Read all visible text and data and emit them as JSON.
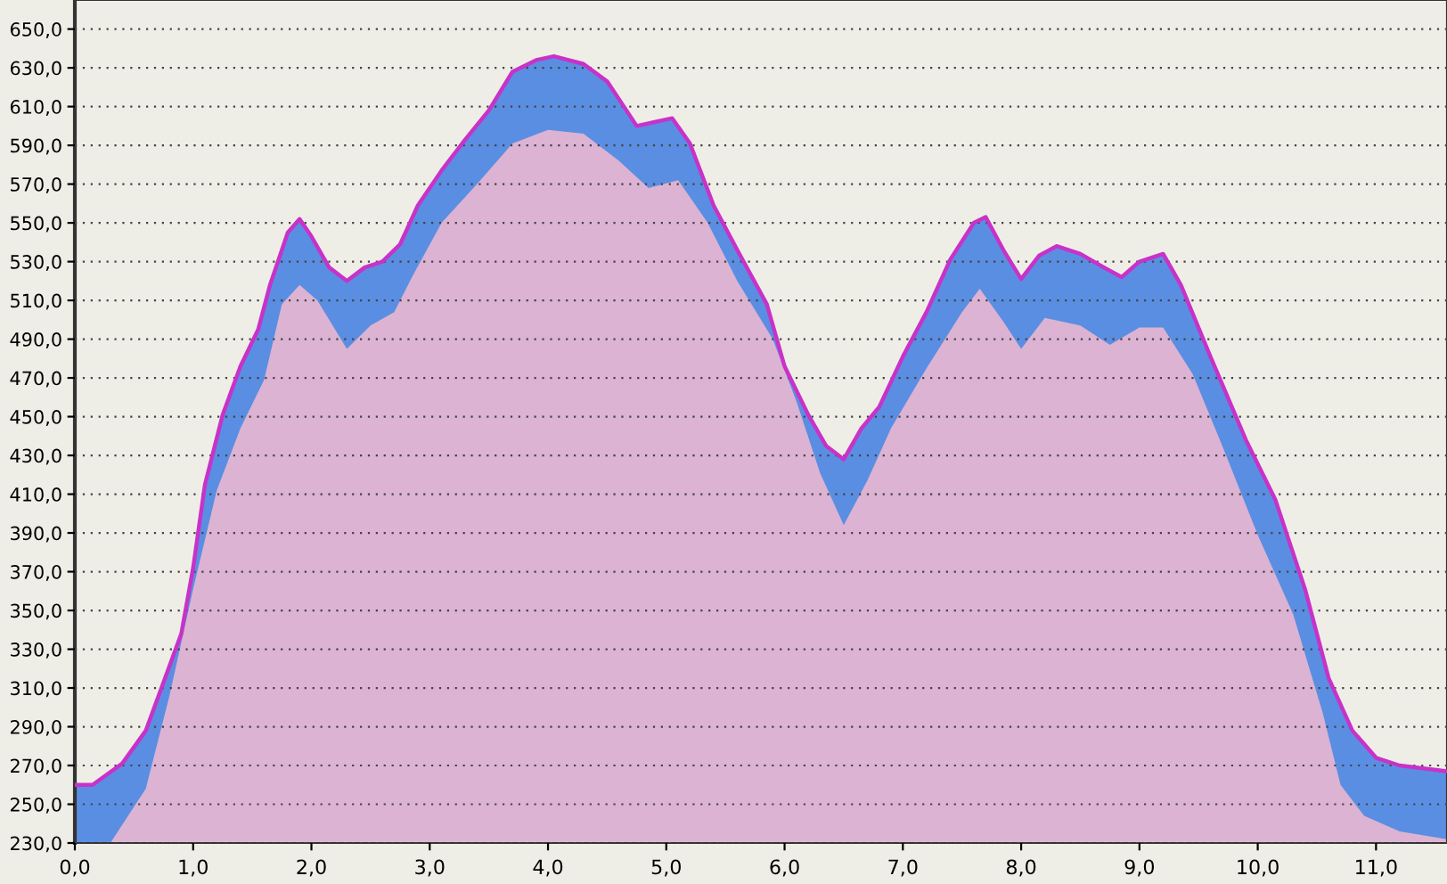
{
  "chart_data": {
    "type": "area",
    "xlim": [
      0,
      11.6
    ],
    "ylim": [
      230,
      665
    ],
    "xticks": [
      {
        "value": 0,
        "label": "0,0"
      },
      {
        "value": 1,
        "label": "1,0"
      },
      {
        "value": 2,
        "label": "2,0"
      },
      {
        "value": 3,
        "label": "3,0"
      },
      {
        "value": 4,
        "label": "4,0"
      },
      {
        "value": 5,
        "label": "5,0"
      },
      {
        "value": 6,
        "label": "6,0"
      },
      {
        "value": 7,
        "label": "7,0"
      },
      {
        "value": 8,
        "label": "8,0"
      },
      {
        "value": 9,
        "label": "9,0"
      },
      {
        "value": 10,
        "label": "10,0"
      },
      {
        "value": 11,
        "label": "11,0"
      }
    ],
    "yticks": [
      {
        "value": 230,
        "label": "230,0"
      },
      {
        "value": 250,
        "label": "250,0"
      },
      {
        "value": 270,
        "label": "270,0"
      },
      {
        "value": 290,
        "label": "290,0"
      },
      {
        "value": 310,
        "label": "310,0"
      },
      {
        "value": 330,
        "label": "330,0"
      },
      {
        "value": 350,
        "label": "350,0"
      },
      {
        "value": 370,
        "label": "370,0"
      },
      {
        "value": 390,
        "label": "390,0"
      },
      {
        "value": 410,
        "label": "410,0"
      },
      {
        "value": 430,
        "label": "430,0"
      },
      {
        "value": 450,
        "label": "450,0"
      },
      {
        "value": 470,
        "label": "470,0"
      },
      {
        "value": 490,
        "label": "490,0"
      },
      {
        "value": 510,
        "label": "510,0"
      },
      {
        "value": 530,
        "label": "530,0"
      },
      {
        "value": 550,
        "label": "550,0"
      },
      {
        "value": 570,
        "label": "570,0"
      },
      {
        "value": 590,
        "label": "590,0"
      },
      {
        "value": 610,
        "label": "610,0"
      },
      {
        "value": 630,
        "label": "630,0"
      },
      {
        "value": 650,
        "label": "650,0"
      }
    ],
    "grid": "y",
    "legend": false,
    "series": [
      {
        "color": "#5a8ee2",
        "x": [
          0,
          0.15,
          0.4,
          0.6,
          0.75,
          0.9,
          1.0,
          1.1,
          1.25,
          1.4,
          1.55,
          1.65,
          1.8,
          1.9,
          2.0,
          2.15,
          2.3,
          2.45,
          2.6,
          2.75,
          2.9,
          3.1,
          3.3,
          3.5,
          3.7,
          3.9,
          4.05,
          4.3,
          4.5,
          4.75,
          4.9,
          5.05,
          5.2,
          5.4,
          5.6,
          5.85,
          6.0,
          6.2,
          6.35,
          6.5,
          6.65,
          6.8,
          7.0,
          7.2,
          7.4,
          7.6,
          7.7,
          7.85,
          8.0,
          8.15,
          8.3,
          8.5,
          8.7,
          8.85,
          9.0,
          9.2,
          9.35,
          9.6,
          9.9,
          10.15,
          10.4,
          10.6,
          10.8,
          11.0,
          11.2,
          11.6
        ],
        "values": [
          260,
          260,
          271,
          288,
          313,
          338,
          372,
          415,
          451,
          476,
          495,
          518,
          545,
          552,
          543,
          527,
          520,
          527,
          530,
          539,
          559,
          577,
          593,
          608,
          628,
          634,
          636,
          632,
          623,
          600,
          602,
          604,
          591,
          559,
          536,
          508,
          476,
          451,
          435,
          428,
          444,
          455,
          481,
          504,
          531,
          550,
          553,
          536,
          521,
          533,
          538,
          534,
          527,
          522,
          530,
          534,
          518,
          481,
          438,
          407,
          361,
          315,
          288,
          274,
          270,
          267
        ]
      },
      {
        "color": "#dcb3d2",
        "x": [
          0,
          0.3,
          0.6,
          0.8,
          1.0,
          1.2,
          1.4,
          1.6,
          1.75,
          1.9,
          2.05,
          2.3,
          2.5,
          2.7,
          2.85,
          3.1,
          3.4,
          3.7,
          4.0,
          4.3,
          4.6,
          4.85,
          5.1,
          5.35,
          5.6,
          5.9,
          6.1,
          6.3,
          6.5,
          6.7,
          6.9,
          7.2,
          7.5,
          7.65,
          7.85,
          8.0,
          8.2,
          8.5,
          8.75,
          9.0,
          9.2,
          9.45,
          9.7,
          10.0,
          10.3,
          10.55,
          10.7,
          10.9,
          11.2,
          11.6
        ],
        "values": [
          230,
          230,
          258,
          306,
          361,
          412,
          444,
          469,
          508,
          518,
          510,
          485,
          497,
          504,
          522,
          550,
          570,
          591,
          598,
          596,
          582,
          568,
          572,
          550,
          520,
          490,
          458,
          421,
          394,
          417,
          444,
          475,
          504,
          516,
          499,
          485,
          501,
          497,
          487,
          496,
          496,
          472,
          435,
          389,
          348,
          297,
          260,
          244,
          236,
          232
        ]
      },
      {
        "type": "line",
        "color": "#c832c8",
        "x": [
          0,
          0.15,
          0.4,
          0.6,
          0.75,
          0.9,
          1.0,
          1.1,
          1.25,
          1.4,
          1.55,
          1.65,
          1.8,
          1.9,
          2.0,
          2.15,
          2.3,
          2.45,
          2.6,
          2.75,
          2.9,
          3.1,
          3.3,
          3.5,
          3.7,
          3.9,
          4.05,
          4.3,
          4.5,
          4.75,
          4.9,
          5.05,
          5.2,
          5.4,
          5.6,
          5.85,
          6.0,
          6.2,
          6.35,
          6.5,
          6.65,
          6.8,
          7.0,
          7.2,
          7.4,
          7.6,
          7.7,
          7.85,
          8.0,
          8.15,
          8.3,
          8.5,
          8.7,
          8.85,
          9.0,
          9.2,
          9.35,
          9.6,
          9.9,
          10.15,
          10.4,
          10.6,
          10.8,
          11.0,
          11.2,
          11.6
        ],
        "values": [
          260,
          260,
          271,
          288,
          313,
          338,
          372,
          415,
          451,
          476,
          495,
          518,
          545,
          552,
          543,
          527,
          520,
          527,
          530,
          539,
          559,
          577,
          593,
          608,
          628,
          634,
          636,
          632,
          623,
          600,
          602,
          604,
          591,
          559,
          536,
          508,
          476,
          451,
          435,
          428,
          444,
          455,
          481,
          504,
          531,
          550,
          553,
          536,
          521,
          533,
          538,
          534,
          527,
          522,
          530,
          534,
          518,
          481,
          438,
          407,
          361,
          315,
          288,
          274,
          270,
          267
        ]
      }
    ]
  }
}
